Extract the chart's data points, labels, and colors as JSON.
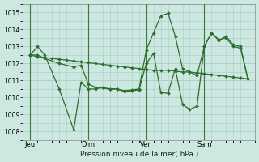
{
  "background_color": "#cce8e0",
  "grid_color": "#aacccc",
  "line_color": "#2d6e2d",
  "xlabel": "Pression niveau de la mer( hPa )",
  "ylim": [
    1007.5,
    1015.5
  ],
  "yticks": [
    1008,
    1009,
    1010,
    1011,
    1012,
    1013,
    1014,
    1015
  ],
  "xlim": [
    0,
    32
  ],
  "day_positions": [
    1,
    9,
    17,
    25
  ],
  "day_labels": [
    "Jeu",
    "Dim",
    "Ven",
    "Sam"
  ],
  "series1_x": [
    1,
    2,
    3,
    4,
    5,
    6,
    7,
    8,
    9,
    10,
    11,
    12,
    13,
    14,
    15,
    16,
    17,
    18,
    19,
    20,
    21,
    22,
    23,
    24,
    25,
    26,
    27,
    28,
    29,
    30,
    31
  ],
  "series1_y": [
    1012.5,
    1012.4,
    1012.35,
    1012.3,
    1012.25,
    1012.2,
    1012.15,
    1012.1,
    1012.05,
    1012.0,
    1011.95,
    1011.9,
    1011.85,
    1011.8,
    1011.75,
    1011.7,
    1011.65,
    1011.6,
    1011.6,
    1011.6,
    1011.55,
    1011.5,
    1011.5,
    1011.45,
    1011.4,
    1011.35,
    1011.3,
    1011.25,
    1011.2,
    1011.15,
    1011.1
  ],
  "series2_x": [
    1,
    2,
    3,
    5,
    7,
    8,
    9,
    10,
    11,
    12,
    13,
    14,
    15,
    16,
    17,
    18,
    19,
    20,
    21,
    22,
    23,
    24,
    25,
    26,
    27,
    28,
    29,
    30,
    31
  ],
  "series2_y": [
    1012.5,
    1013.0,
    1012.5,
    1010.5,
    1008.1,
    1010.9,
    1010.5,
    1010.5,
    1010.6,
    1010.5,
    1010.5,
    1010.4,
    1010.45,
    1010.5,
    1012.8,
    1013.8,
    1014.8,
    1014.95,
    1013.6,
    1011.7,
    1011.5,
    1011.3,
    1013.0,
    1013.8,
    1013.35,
    1013.6,
    1013.1,
    1013.0,
    1011.1
  ],
  "series3_x": [
    1,
    2,
    3,
    5,
    7,
    8,
    9,
    10,
    12,
    13,
    14,
    15,
    16,
    17,
    18,
    19,
    20,
    21,
    22,
    23,
    24,
    25,
    26,
    27,
    28,
    29,
    30,
    31
  ],
  "series3_y": [
    1012.5,
    1012.5,
    1012.3,
    1012.0,
    1011.8,
    1011.9,
    1010.8,
    1010.6,
    1010.5,
    1010.5,
    1010.35,
    1010.4,
    1010.45,
    1012.0,
    1012.6,
    1010.3,
    1010.25,
    1011.7,
    1009.6,
    1009.3,
    1009.5,
    1013.0,
    1013.8,
    1013.4,
    1013.5,
    1013.0,
    1012.9,
    1011.1
  ]
}
